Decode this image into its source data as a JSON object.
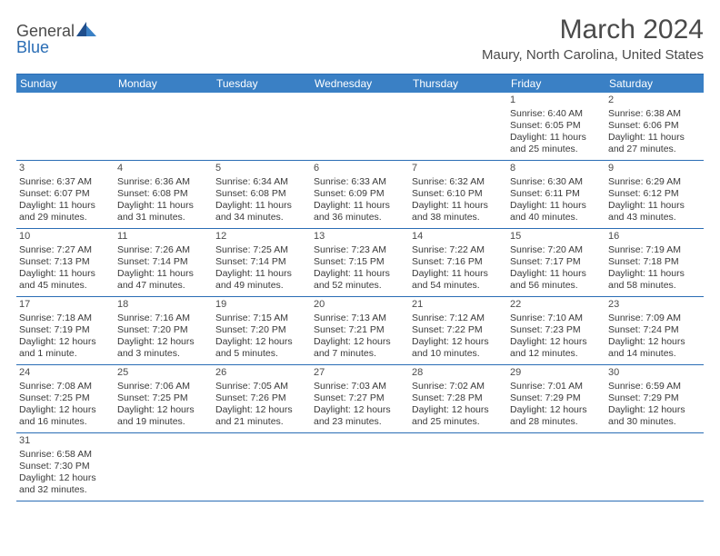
{
  "logo": {
    "text_general": "General",
    "text_blue": "Blue"
  },
  "header": {
    "month_title": "March 2024",
    "location": "Maury, North Carolina, United States"
  },
  "colors": {
    "header_bg": "#3a80c5",
    "border": "#2a6db5",
    "text": "#3a3a3a",
    "title": "#4a4a4a"
  },
  "weekdays": [
    "Sunday",
    "Monday",
    "Tuesday",
    "Wednesday",
    "Thursday",
    "Friday",
    "Saturday"
  ],
  "weeks": [
    [
      null,
      null,
      null,
      null,
      null,
      {
        "n": "1",
        "sunrise": "Sunrise: 6:40 AM",
        "sunset": "Sunset: 6:05 PM",
        "daylight": "Daylight: 11 hours and 25 minutes."
      },
      {
        "n": "2",
        "sunrise": "Sunrise: 6:38 AM",
        "sunset": "Sunset: 6:06 PM",
        "daylight": "Daylight: 11 hours and 27 minutes."
      }
    ],
    [
      {
        "n": "3",
        "sunrise": "Sunrise: 6:37 AM",
        "sunset": "Sunset: 6:07 PM",
        "daylight": "Daylight: 11 hours and 29 minutes."
      },
      {
        "n": "4",
        "sunrise": "Sunrise: 6:36 AM",
        "sunset": "Sunset: 6:08 PM",
        "daylight": "Daylight: 11 hours and 31 minutes."
      },
      {
        "n": "5",
        "sunrise": "Sunrise: 6:34 AM",
        "sunset": "Sunset: 6:08 PM",
        "daylight": "Daylight: 11 hours and 34 minutes."
      },
      {
        "n": "6",
        "sunrise": "Sunrise: 6:33 AM",
        "sunset": "Sunset: 6:09 PM",
        "daylight": "Daylight: 11 hours and 36 minutes."
      },
      {
        "n": "7",
        "sunrise": "Sunrise: 6:32 AM",
        "sunset": "Sunset: 6:10 PM",
        "daylight": "Daylight: 11 hours and 38 minutes."
      },
      {
        "n": "8",
        "sunrise": "Sunrise: 6:30 AM",
        "sunset": "Sunset: 6:11 PM",
        "daylight": "Daylight: 11 hours and 40 minutes."
      },
      {
        "n": "9",
        "sunrise": "Sunrise: 6:29 AM",
        "sunset": "Sunset: 6:12 PM",
        "daylight": "Daylight: 11 hours and 43 minutes."
      }
    ],
    [
      {
        "n": "10",
        "sunrise": "Sunrise: 7:27 AM",
        "sunset": "Sunset: 7:13 PM",
        "daylight": "Daylight: 11 hours and 45 minutes."
      },
      {
        "n": "11",
        "sunrise": "Sunrise: 7:26 AM",
        "sunset": "Sunset: 7:14 PM",
        "daylight": "Daylight: 11 hours and 47 minutes."
      },
      {
        "n": "12",
        "sunrise": "Sunrise: 7:25 AM",
        "sunset": "Sunset: 7:14 PM",
        "daylight": "Daylight: 11 hours and 49 minutes."
      },
      {
        "n": "13",
        "sunrise": "Sunrise: 7:23 AM",
        "sunset": "Sunset: 7:15 PM",
        "daylight": "Daylight: 11 hours and 52 minutes."
      },
      {
        "n": "14",
        "sunrise": "Sunrise: 7:22 AM",
        "sunset": "Sunset: 7:16 PM",
        "daylight": "Daylight: 11 hours and 54 minutes."
      },
      {
        "n": "15",
        "sunrise": "Sunrise: 7:20 AM",
        "sunset": "Sunset: 7:17 PM",
        "daylight": "Daylight: 11 hours and 56 minutes."
      },
      {
        "n": "16",
        "sunrise": "Sunrise: 7:19 AM",
        "sunset": "Sunset: 7:18 PM",
        "daylight": "Daylight: 11 hours and 58 minutes."
      }
    ],
    [
      {
        "n": "17",
        "sunrise": "Sunrise: 7:18 AM",
        "sunset": "Sunset: 7:19 PM",
        "daylight": "Daylight: 12 hours and 1 minute."
      },
      {
        "n": "18",
        "sunrise": "Sunrise: 7:16 AM",
        "sunset": "Sunset: 7:20 PM",
        "daylight": "Daylight: 12 hours and 3 minutes."
      },
      {
        "n": "19",
        "sunrise": "Sunrise: 7:15 AM",
        "sunset": "Sunset: 7:20 PM",
        "daylight": "Daylight: 12 hours and 5 minutes."
      },
      {
        "n": "20",
        "sunrise": "Sunrise: 7:13 AM",
        "sunset": "Sunset: 7:21 PM",
        "daylight": "Daylight: 12 hours and 7 minutes."
      },
      {
        "n": "21",
        "sunrise": "Sunrise: 7:12 AM",
        "sunset": "Sunset: 7:22 PM",
        "daylight": "Daylight: 12 hours and 10 minutes."
      },
      {
        "n": "22",
        "sunrise": "Sunrise: 7:10 AM",
        "sunset": "Sunset: 7:23 PM",
        "daylight": "Daylight: 12 hours and 12 minutes."
      },
      {
        "n": "23",
        "sunrise": "Sunrise: 7:09 AM",
        "sunset": "Sunset: 7:24 PM",
        "daylight": "Daylight: 12 hours and 14 minutes."
      }
    ],
    [
      {
        "n": "24",
        "sunrise": "Sunrise: 7:08 AM",
        "sunset": "Sunset: 7:25 PM",
        "daylight": "Daylight: 12 hours and 16 minutes."
      },
      {
        "n": "25",
        "sunrise": "Sunrise: 7:06 AM",
        "sunset": "Sunset: 7:25 PM",
        "daylight": "Daylight: 12 hours and 19 minutes."
      },
      {
        "n": "26",
        "sunrise": "Sunrise: 7:05 AM",
        "sunset": "Sunset: 7:26 PM",
        "daylight": "Daylight: 12 hours and 21 minutes."
      },
      {
        "n": "27",
        "sunrise": "Sunrise: 7:03 AM",
        "sunset": "Sunset: 7:27 PM",
        "daylight": "Daylight: 12 hours and 23 minutes."
      },
      {
        "n": "28",
        "sunrise": "Sunrise: 7:02 AM",
        "sunset": "Sunset: 7:28 PM",
        "daylight": "Daylight: 12 hours and 25 minutes."
      },
      {
        "n": "29",
        "sunrise": "Sunrise: 7:01 AM",
        "sunset": "Sunset: 7:29 PM",
        "daylight": "Daylight: 12 hours and 28 minutes."
      },
      {
        "n": "30",
        "sunrise": "Sunrise: 6:59 AM",
        "sunset": "Sunset: 7:29 PM",
        "daylight": "Daylight: 12 hours and 30 minutes."
      }
    ],
    [
      {
        "n": "31",
        "sunrise": "Sunrise: 6:58 AM",
        "sunset": "Sunset: 7:30 PM",
        "daylight": "Daylight: 12 hours and 32 minutes."
      },
      null,
      null,
      null,
      null,
      null,
      null
    ]
  ]
}
